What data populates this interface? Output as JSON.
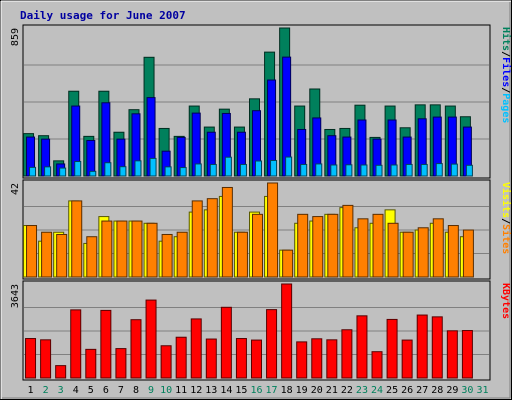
{
  "chart_data": {
    "type": "bar",
    "title": "Daily usage for June 2007",
    "categories": [
      "1",
      "2",
      "3",
      "4",
      "5",
      "6",
      "7",
      "8",
      "9",
      "10",
      "11",
      "12",
      "13",
      "14",
      "15",
      "16",
      "17",
      "18",
      "19",
      "20",
      "21",
      "22",
      "23",
      "24",
      "25",
      "26",
      "27",
      "28",
      "29",
      "30",
      "31"
    ],
    "weekend_days": [
      "2",
      "3",
      "9",
      "10",
      "16",
      "17",
      "23",
      "24",
      "30",
      "31"
    ],
    "panels": [
      {
        "name": "top",
        "max_label": "859",
        "ylim": [
          0,
          859
        ],
        "legend": [
          {
            "text": "Hits",
            "color": "#00805c"
          },
          {
            "text": "/",
            "color": "#000000"
          },
          {
            "text": "Files",
            "color": "#0000ff"
          },
          {
            "text": "/",
            "color": "#000000"
          },
          {
            "text": "Pages",
            "color": "#00c0ff"
          }
        ],
        "series": [
          {
            "name": "Hits",
            "color": "#00805c",
            "values": [
              246,
              234,
              88,
              492,
              230,
              492,
              254,
              385,
              689,
              276,
              230,
              406,
              284,
              388,
              284,
              448,
              719,
              859,
              406,
              505,
              270,
              276,
              411,
              224,
              406,
              280,
              413,
              413,
              406,
              344,
              0
            ]
          },
          {
            "name": "Files",
            "color": "#0000ff",
            "values": [
              226,
              214,
              70,
              406,
              206,
              425,
              214,
              361,
              455,
              144,
              224,
              365,
              254,
              363,
              254,
              379,
              557,
              690,
              270,
              337,
              234,
              226,
              325,
              214,
              325,
              226,
              332,
              342,
              342,
              284,
              0
            ]
          },
          {
            "name": "Pages",
            "color": "#00c0ff",
            "values": [
              50,
              53,
              46,
              84,
              27,
              77,
              54,
              88,
              102,
              53,
              49,
              70,
              67,
              109,
              67,
              87,
              90,
              110,
              67,
              70,
              64,
              65,
              64,
              62,
              64,
              67,
              67,
              72,
              69,
              62,
              0
            ]
          }
        ]
      },
      {
        "name": "middle",
        "max_label": "42",
        "ylim": [
          0,
          42
        ],
        "legend": [
          {
            "text": "Visits",
            "color": "#ffff00"
          },
          {
            "text": "/",
            "color": "#000000"
          },
          {
            "text": "Sites",
            "color": "#ff8000"
          }
        ],
        "series": [
          {
            "name": "Visits",
            "color": "#ffff00",
            "values": [
              23,
              16,
              20,
              34,
              15,
              27,
              25,
              25,
              24,
              16,
              18,
              29,
              30,
              36,
              20,
              29,
              36,
              12,
              24,
              25,
              28,
              31,
              22,
              24,
              30,
              20,
              21,
              24,
              20,
              18,
              0
            ]
          },
          {
            "name": "Sites",
            "color": "#ff8000",
            "values": [
              23,
              20,
              19,
              34,
              18,
              25,
              25,
              25,
              24,
              19,
              20,
              34,
              35,
              40,
              20,
              28,
              42,
              12,
              28,
              27,
              28,
              32,
              26,
              28,
              24,
              20,
              22,
              26,
              23,
              21,
              0
            ]
          }
        ]
      },
      {
        "name": "bottom",
        "max_label": "3643",
        "ylim": [
          0,
          3643
        ],
        "legend": [
          {
            "text": "KBytes",
            "color": "#ff0000"
          }
        ],
        "series": [
          {
            "name": "KBytes",
            "color": "#ff0000",
            "values": [
              1530,
              1480,
              480,
              2640,
              1110,
              2620,
              1140,
              2260,
              3020,
              1250,
              1580,
              2290,
              1510,
              2740,
              1530,
              1470,
              2650,
              3643,
              1400,
              1520,
              1480,
              1870,
              2410,
              1020,
              2270,
              1470,
              2440,
              2370,
              1830,
              1840,
              0
            ]
          }
        ]
      }
    ]
  }
}
